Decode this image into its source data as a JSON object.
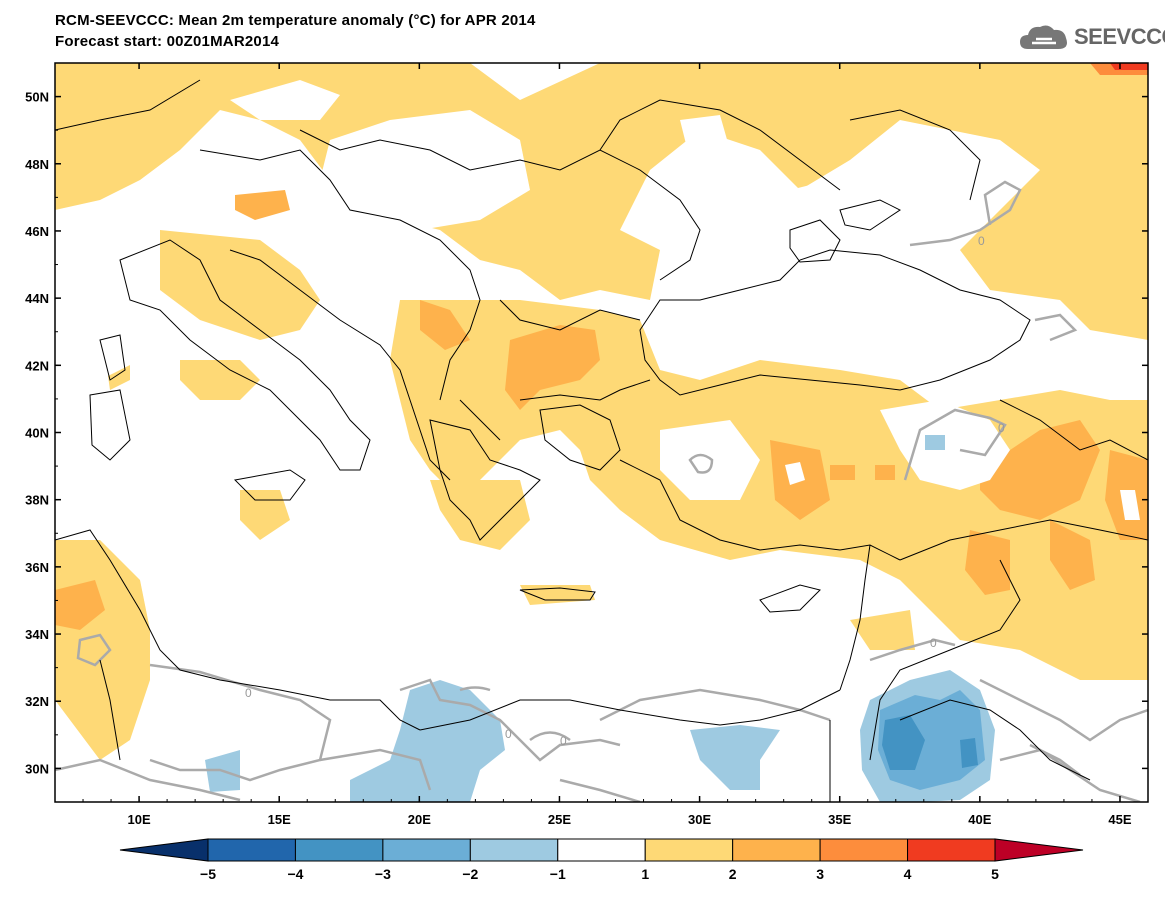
{
  "header": {
    "title": "RCM-SEEVCCC: Mean 2m temperature anomaly (°C) for APR 2014",
    "subtitle": "Forecast start: 00Z01MAR2014",
    "logo_text": "SEEVCCC",
    "logo_icon": "cloud-icon"
  },
  "map": {
    "lon_range": [
      7,
      46
    ],
    "lat_range": [
      29,
      51
    ],
    "lon_ticks": [
      "10E",
      "15E",
      "20E",
      "25E",
      "30E",
      "35E",
      "40E",
      "45E"
    ],
    "lat_ticks": [
      "30N",
      "32N",
      "34N",
      "36N",
      "38N",
      "40N",
      "42N",
      "44N",
      "46N",
      "48N",
      "50N"
    ],
    "contour_labels": [
      "0",
      "0",
      "0",
      "0",
      "0",
      "0"
    ]
  },
  "colorbar": {
    "labels": [
      "−5",
      "−4",
      "−3",
      "−2",
      "−1",
      "1",
      "2",
      "3",
      "4",
      "5"
    ],
    "colors": [
      "#08306b",
      "#2166ac",
      "#4393c3",
      "#6baed6",
      "#9ecae1",
      "#ffffff",
      "#fed976",
      "#feb24c",
      "#fd8d3c",
      "#f03b20",
      "#bd0026"
    ]
  }
}
